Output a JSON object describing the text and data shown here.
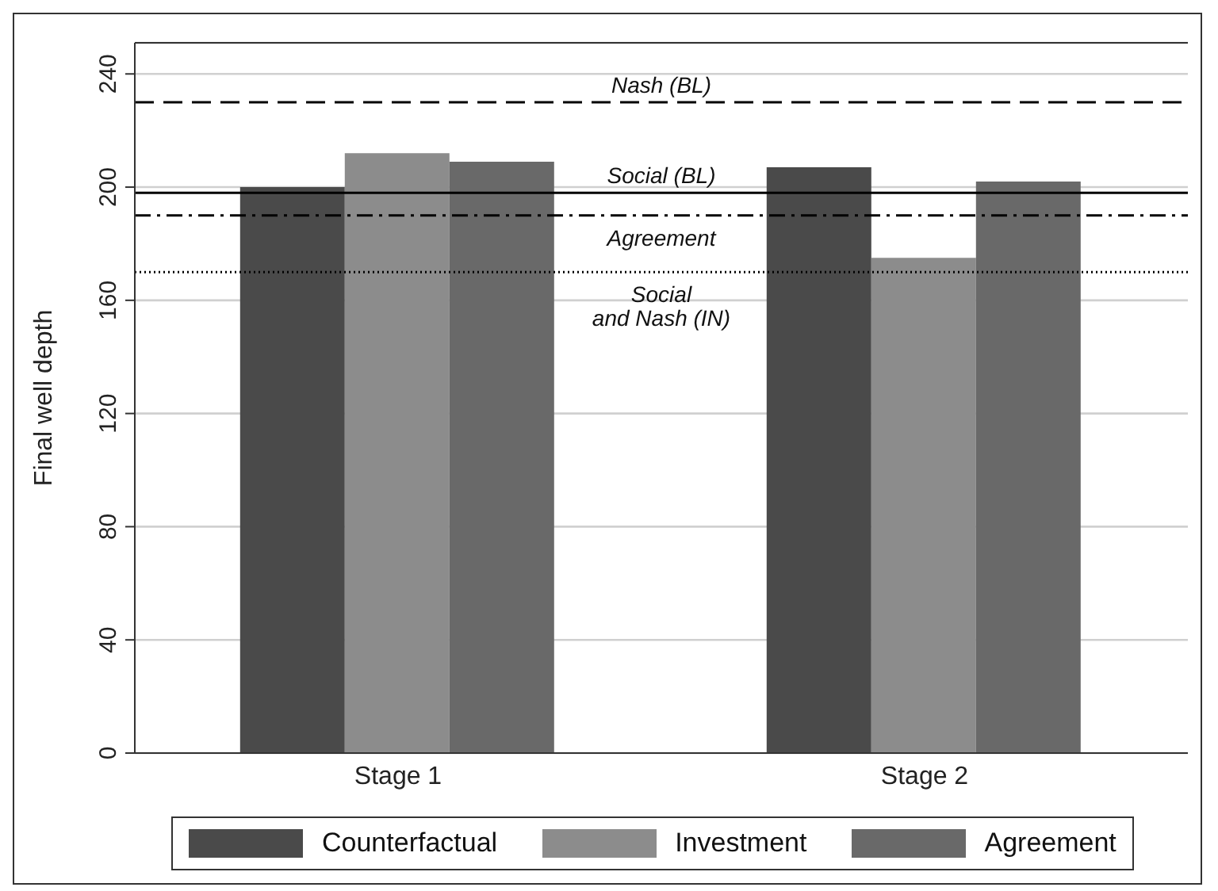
{
  "chart_data": {
    "type": "bar",
    "ylabel": "Final well depth",
    "categories": [
      "Stage 1",
      "Stage 2"
    ],
    "series": [
      {
        "name": "Counterfactual",
        "color": "#4a4a4a",
        "values": [
          200,
          207
        ]
      },
      {
        "name": "Investment",
        "color": "#8c8c8c",
        "values": [
          212,
          175
        ]
      },
      {
        "name": "Agreement",
        "color": "#696969",
        "values": [
          209,
          202
        ]
      }
    ],
    "ylim": [
      0,
      251
    ],
    "yticks": [
      0,
      40,
      80,
      120,
      160,
      200,
      240
    ],
    "grid": "y",
    "legend": "bottom",
    "ref_lines": [
      {
        "axis": "y",
        "value": 230,
        "label": "Nash (BL)",
        "color": "#000000",
        "line_style": "dashed"
      },
      {
        "axis": "y",
        "value": 198,
        "label": "Social (BL)",
        "color": "#000000",
        "line_style": "solid"
      },
      {
        "axis": "y",
        "value": 190,
        "label": "Agreement",
        "color": "#000000",
        "line_style": "dashdot"
      },
      {
        "axis": "y",
        "value": 170,
        "label": "Social\nand Nash (IN)",
        "color": "#000000",
        "line_style": "dotted"
      }
    ]
  }
}
